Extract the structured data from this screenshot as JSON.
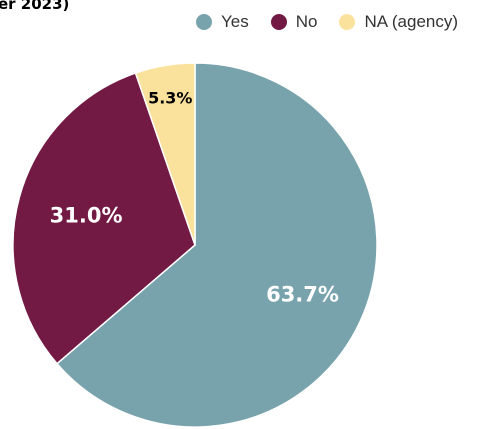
{
  "chart_data": {
    "type": "pie",
    "title": "er 2023)",
    "categories": [
      "Yes",
      "No",
      "NA (agency)"
    ],
    "values": [
      63.7,
      31.0,
      5.3
    ],
    "labels": [
      "63.7%",
      "31.0%",
      "5.3%"
    ],
    "colors": [
      "#78a3ad",
      "#731a44",
      "#fbe29c"
    ],
    "label_colors": [
      "#ffffff",
      "#ffffff",
      "#000000"
    ],
    "legend_position": "top-right"
  }
}
